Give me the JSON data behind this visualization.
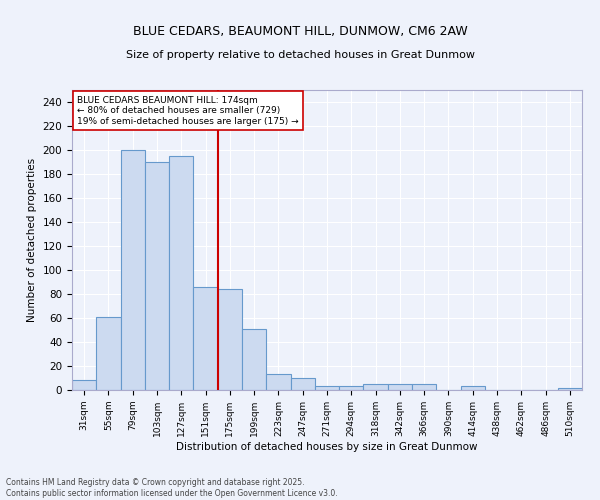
{
  "title1": "BLUE CEDARS, BEAUMONT HILL, DUNMOW, CM6 2AW",
  "title2": "Size of property relative to detached houses in Great Dunmow",
  "xlabel": "Distribution of detached houses by size in Great Dunmow",
  "ylabel": "Number of detached properties",
  "categories": [
    "31sqm",
    "55sqm",
    "79sqm",
    "103sqm",
    "127sqm",
    "151sqm",
    "175sqm",
    "199sqm",
    "223sqm",
    "247sqm",
    "271sqm",
    "294sqm",
    "318sqm",
    "342sqm",
    "366sqm",
    "390sqm",
    "414sqm",
    "438sqm",
    "462sqm",
    "486sqm",
    "510sqm"
  ],
  "values": [
    8,
    61,
    200,
    190,
    195,
    86,
    84,
    51,
    13,
    10,
    3,
    3,
    5,
    5,
    5,
    0,
    3,
    0,
    0,
    0,
    2
  ],
  "bar_color": "#ccdaf0",
  "bar_edge_color": "#6699cc",
  "property_line_index": 6,
  "annotation_text": "BLUE CEDARS BEAUMONT HILL: 174sqm\n← 80% of detached houses are smaller (729)\n19% of semi-detached houses are larger (175) →",
  "annotation_box_color": "#ffffff",
  "annotation_box_edge": "#cc0000",
  "red_line_color": "#cc0000",
  "ylim": [
    0,
    250
  ],
  "yticks": [
    0,
    20,
    40,
    60,
    80,
    100,
    120,
    140,
    160,
    180,
    200,
    220,
    240
  ],
  "background_color": "#eef2fb",
  "grid_color": "#ffffff",
  "footer_line1": "Contains HM Land Registry data © Crown copyright and database right 2025.",
  "footer_line2": "Contains public sector information licensed under the Open Government Licence v3.0."
}
